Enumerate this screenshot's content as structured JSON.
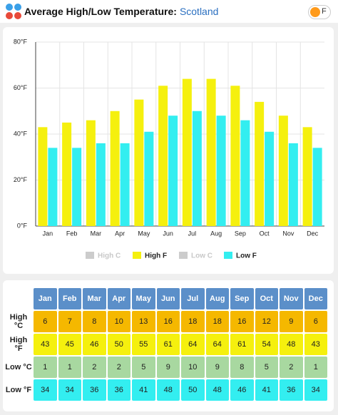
{
  "header": {
    "title": "Average High/Low Temperature:",
    "location": "Scotland",
    "unit_toggle": "F"
  },
  "chart_data": {
    "type": "bar",
    "categories": [
      "Jan",
      "Feb",
      "Mar",
      "Apr",
      "May",
      "Jun",
      "Jul",
      "Aug",
      "Sep",
      "Oct",
      "Nov",
      "Dec"
    ],
    "series": [
      {
        "name": "High C",
        "color": "#f5b800",
        "visible": false,
        "values": [
          6,
          7,
          8,
          10,
          13,
          16,
          18,
          18,
          16,
          12,
          9,
          6
        ]
      },
      {
        "name": "High F",
        "color": "#f5f00e",
        "visible": true,
        "values": [
          43,
          45,
          46,
          50,
          55,
          61,
          64,
          64,
          61,
          54,
          48,
          43
        ]
      },
      {
        "name": "Low C",
        "color": "#a8d8a0",
        "visible": false,
        "values": [
          1,
          1,
          2,
          2,
          5,
          9,
          10,
          9,
          8,
          5,
          2,
          1
        ]
      },
      {
        "name": "Low F",
        "color": "#33eef0",
        "visible": true,
        "values": [
          34,
          34,
          36,
          36,
          41,
          48,
          50,
          48,
          46,
          41,
          36,
          34
        ]
      }
    ],
    "ylim": [
      0,
      80
    ],
    "yticks": [
      {
        "value": 0,
        "label": "0°F"
      },
      {
        "value": 20,
        "label": "20°F"
      },
      {
        "value": 40,
        "label": "40°F"
      },
      {
        "value": 60,
        "label": "60°F"
      },
      {
        "value": 80,
        "label": "80°F"
      }
    ],
    "grid": true
  },
  "table": {
    "row_labels": [
      "High °C",
      "High °F",
      "Low °C",
      "Low °F"
    ]
  }
}
